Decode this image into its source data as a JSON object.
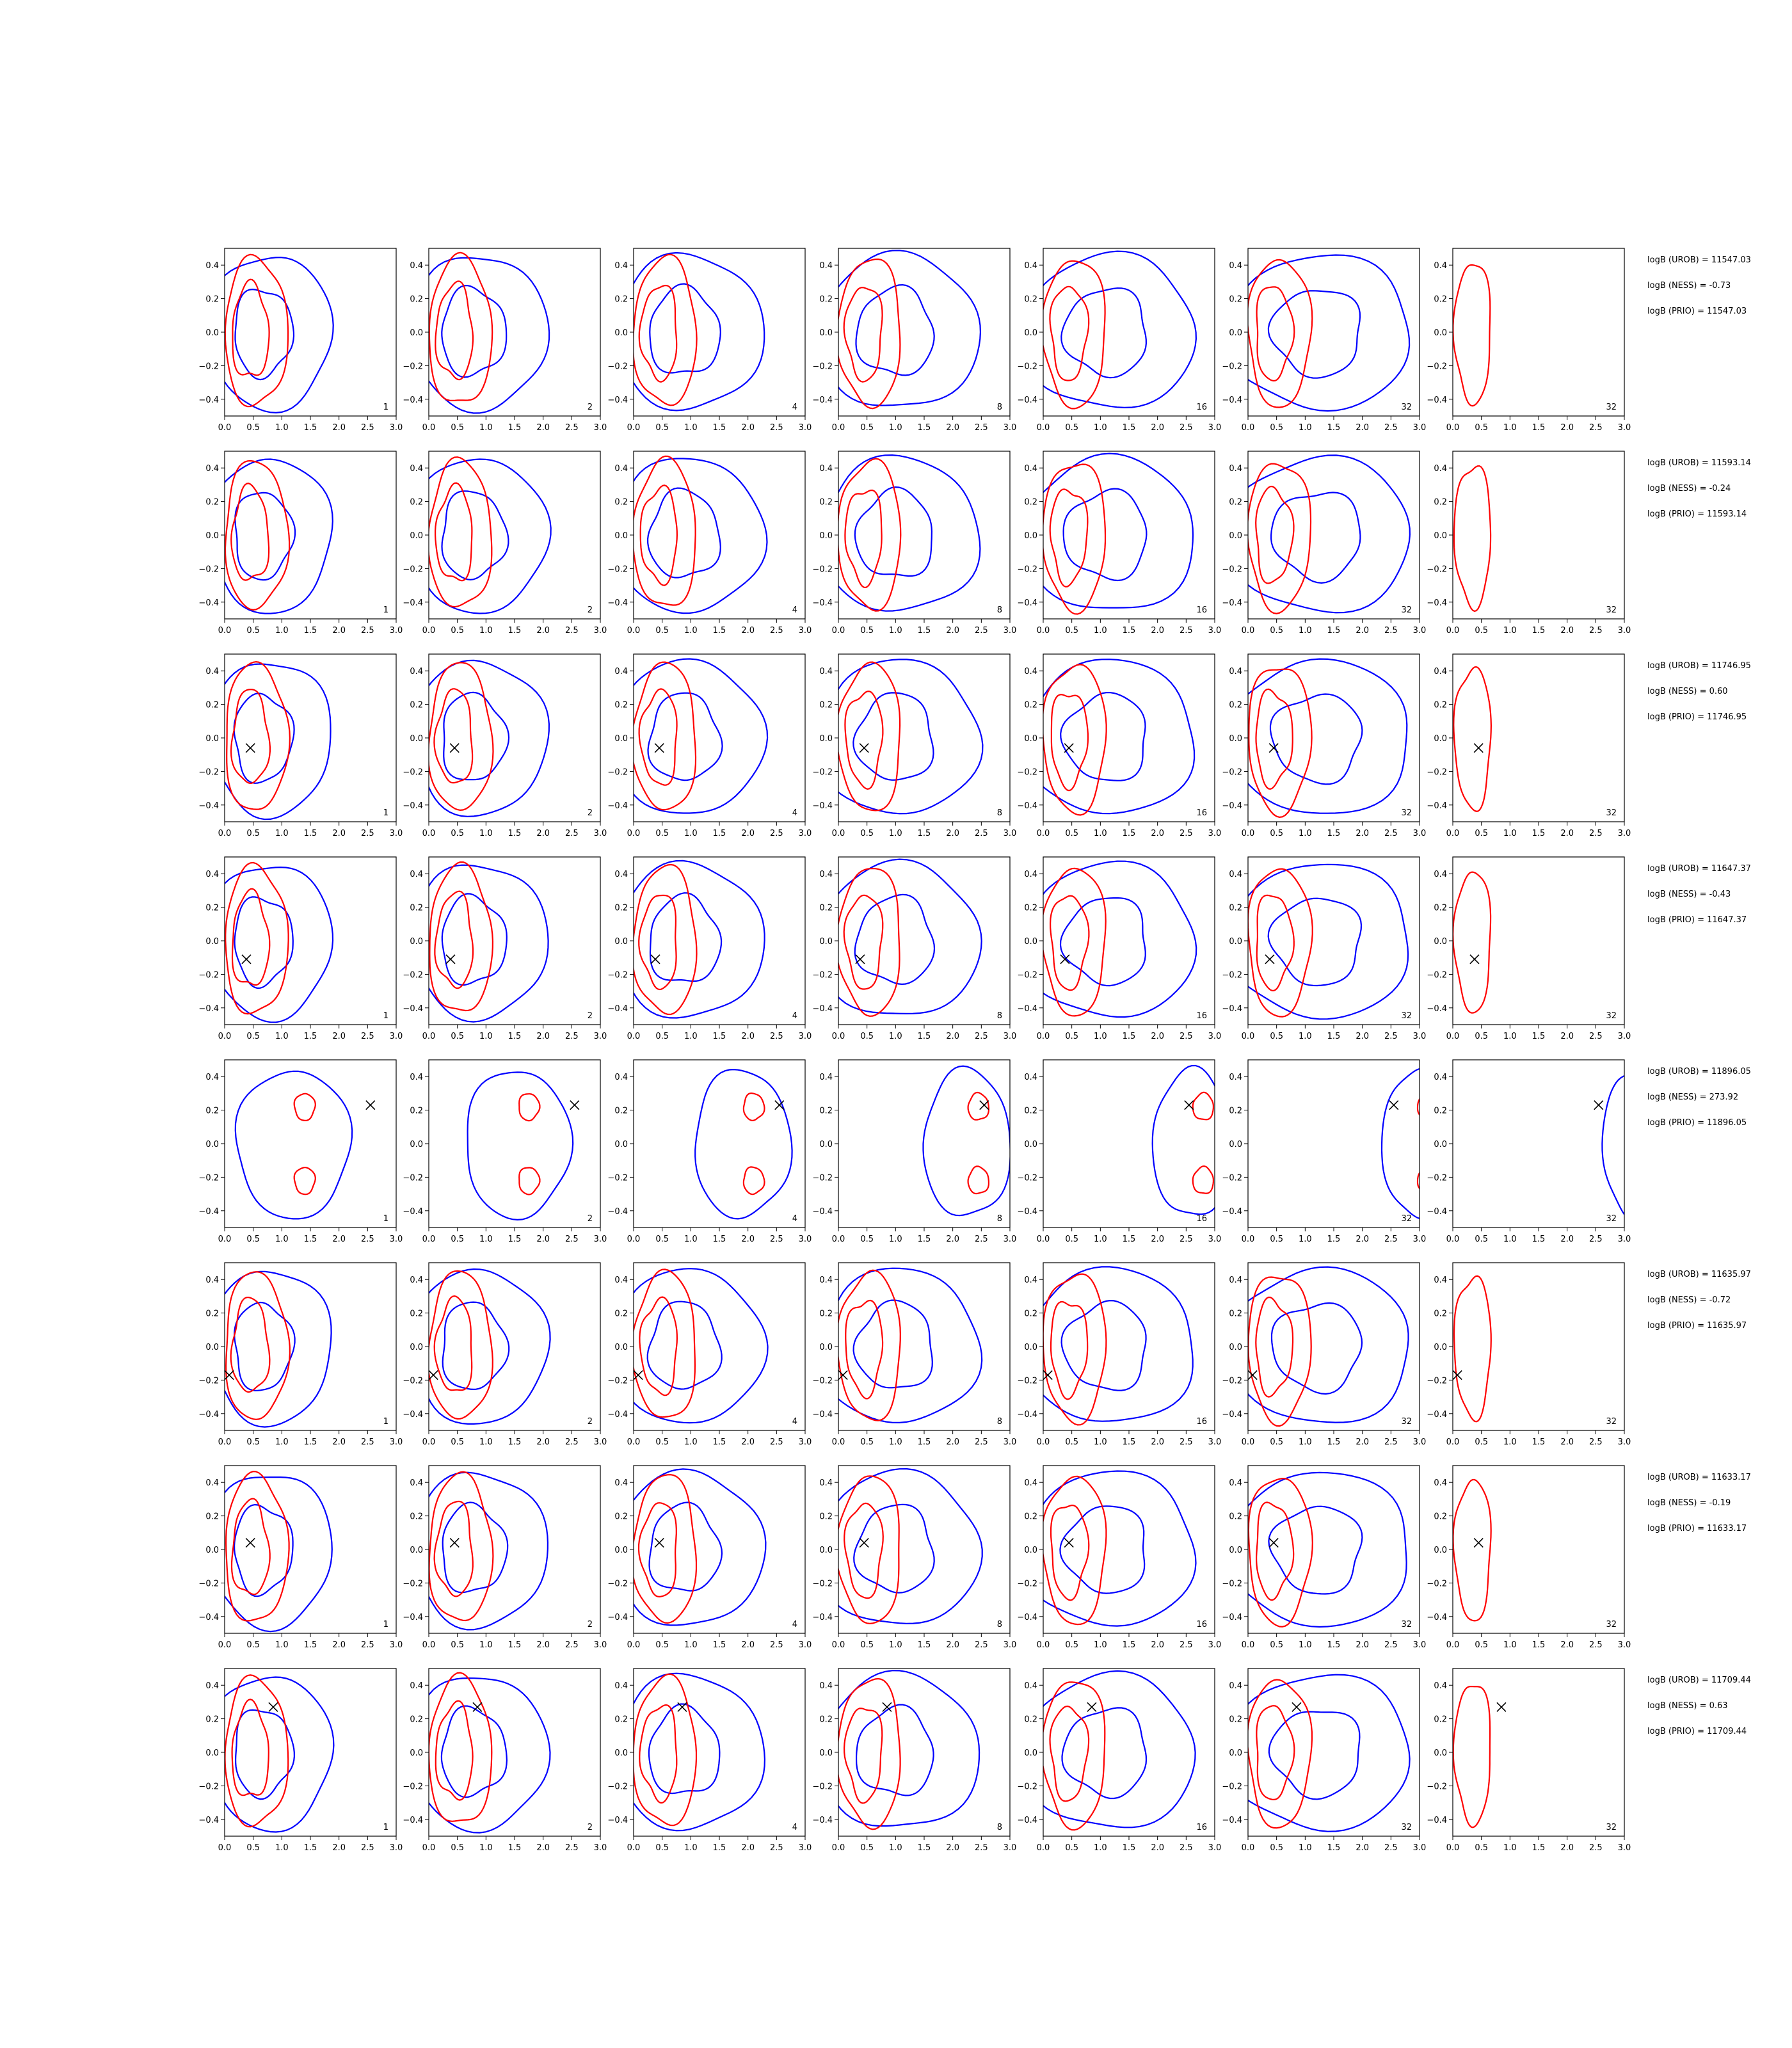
{
  "chart_data": {
    "type": "contour-grid",
    "xlim": [
      0.0,
      3.0
    ],
    "ylim": [
      -0.5,
      0.5
    ],
    "x_ticks": [
      "0.0",
      "0.5",
      "1.0",
      "1.5",
      "2.0",
      "2.5",
      "3.0"
    ],
    "y_ticks": [
      "0.4",
      "0.2",
      "0.0",
      "−0.2",
      "−0.4"
    ],
    "y_tick_values": [
      0.4,
      0.2,
      0.0,
      -0.2,
      -0.4
    ],
    "x_tick_values": [
      0.0,
      0.5,
      1.0,
      1.5,
      2.0,
      2.5,
      3.0
    ],
    "column_labels": [
      "1",
      "2",
      "4",
      "8",
      "16",
      "32",
      "32"
    ],
    "colors": {
      "series_a": "#0000ff",
      "series_b": "#ff0000",
      "marker": "#000000"
    },
    "grid": false,
    "rows": [
      {
        "marker": null,
        "text": [
          "logB (UROB) = 11547.03",
          "logB (NESS) = -0.73",
          "logB (PRIO) = 11547.03"
        ]
      },
      {
        "marker": null,
        "text": [
          "logB (UROB) = 11593.14",
          "logB (NESS) = -0.24",
          "logB (PRIO) = 11593.14"
        ]
      },
      {
        "marker": [
          0.45,
          -0.06
        ],
        "text": [
          "logB (UROB) = 11746.95",
          "logB (NESS) = 0.60",
          "logB (PRIO) = 11746.95"
        ]
      },
      {
        "marker": [
          0.38,
          -0.11
        ],
        "text": [
          "logB (UROB) = 11647.37",
          "logB (NESS) = -0.43",
          "logB (PRIO) = 11647.37"
        ]
      },
      {
        "marker": [
          2.55,
          0.23
        ],
        "text": [
          "logB (UROB) = 11896.05",
          "logB (NESS) = 273.92",
          "logB (PRIO) = 11896.05"
        ]
      },
      {
        "marker": [
          0.08,
          -0.17
        ],
        "text": [
          "logB (UROB) = 11635.97",
          "logB (NESS) = -0.72",
          "logB (PRIO) = 11635.97"
        ]
      },
      {
        "marker": [
          0.45,
          0.04
        ],
        "text": [
          "logB (UROB) = 11633.17",
          "logB (NESS) = -0.19",
          "logB (PRIO) = 11633.17"
        ]
      },
      {
        "marker": [
          0.85,
          0.27
        ],
        "text": [
          "logB (UROB) = 11709.44",
          "logB (NESS) = 0.63",
          "logB (PRIO) = 11709.44"
        ]
      }
    ]
  }
}
